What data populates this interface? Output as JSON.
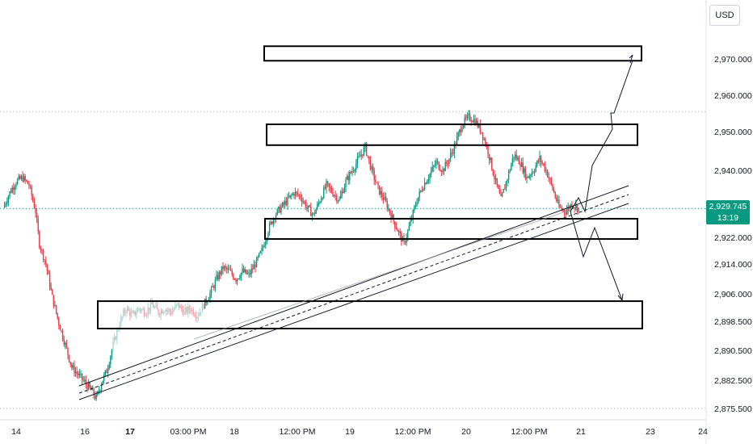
{
  "currency": "USD",
  "current_price": {
    "value": "2,929.745",
    "countdown": "13:19",
    "color": "#089981"
  },
  "colors": {
    "up": "#089981",
    "down": "#f23645",
    "up_light": "#a7d9cf",
    "down_light": "#f5a6b0",
    "box": "#000000",
    "trend_gray": "#9598a1"
  },
  "chart_data": {
    "type": "candlestick",
    "symbol_currency": "USD",
    "y_axis": {
      "ticks": [
        2970,
        2960,
        2950,
        2940,
        2922,
        2914,
        2906,
        2898.5,
        2890.5,
        2882.5,
        2875.5
      ],
      "tick_labels": [
        "2,970.000",
        "2,960.000",
        "2,950.000",
        "2,940.000",
        "2,922.000",
        "2,914.000",
        "2,906.000",
        "2,898.500",
        "2,890.500",
        "2,882.500",
        "2,875.500"
      ],
      "current": 2929.745
    },
    "x_axis": {
      "labels": [
        {
          "text": "14",
          "bold": false
        },
        {
          "text": "16",
          "bold": false
        },
        {
          "text": "17",
          "bold": true
        },
        {
          "text": "03:00 PM",
          "bold": false
        },
        {
          "text": "18",
          "bold": false
        },
        {
          "text": "12:00 PM",
          "bold": false
        },
        {
          "text": "19",
          "bold": false
        },
        {
          "text": "12:00 PM",
          "bold": false
        },
        {
          "text": "20",
          "bold": false
        },
        {
          "text": "12:00 PM",
          "bold": false
        },
        {
          "text": "21",
          "bold": false
        },
        {
          "text": "23",
          "bold": false
        },
        {
          "text": "24",
          "bold": false
        }
      ]
    },
    "price_path": [
      [
        0,
        2930
      ],
      [
        5,
        2934
      ],
      [
        10,
        2937
      ],
      [
        15,
        2938
      ],
      [
        20,
        2936
      ],
      [
        25,
        2929
      ],
      [
        28,
        2920
      ],
      [
        33,
        2914
      ],
      [
        38,
        2905
      ],
      [
        43,
        2898
      ],
      [
        48,
        2892
      ],
      [
        53,
        2886
      ],
      [
        58,
        2884
      ],
      [
        63,
        2882
      ],
      [
        68,
        2880
      ],
      [
        72,
        2878
      ],
      [
        76,
        2882
      ],
      [
        80,
        2885
      ],
      [
        85,
        2892
      ],
      [
        90,
        2898
      ],
      [
        95,
        2902
      ],
      [
        100,
        2900
      ],
      [
        105,
        2902
      ],
      [
        110,
        2901
      ],
      [
        115,
        2903
      ],
      [
        120,
        2901
      ],
      [
        125,
        2902
      ],
      [
        130,
        2901
      ],
      [
        135,
        2903
      ],
      [
        140,
        2901
      ],
      [
        145,
        2902
      ],
      [
        150,
        2900
      ],
      [
        155,
        2903
      ],
      [
        160,
        2906
      ],
      [
        165,
        2910
      ],
      [
        170,
        2913
      ],
      [
        175,
        2912
      ],
      [
        180,
        2910
      ],
      [
        185,
        2912
      ],
      [
        190,
        2911
      ],
      [
        195,
        2914
      ],
      [
        200,
        2918
      ],
      [
        205,
        2924
      ],
      [
        210,
        2928
      ],
      [
        215,
        2930
      ],
      [
        220,
        2932
      ],
      [
        225,
        2934
      ],
      [
        230,
        2933
      ],
      [
        235,
        2930
      ],
      [
        240,
        2928
      ],
      [
        245,
        2932
      ],
      [
        250,
        2936
      ],
      [
        255,
        2934
      ],
      [
        260,
        2932
      ],
      [
        265,
        2937
      ],
      [
        270,
        2940
      ],
      [
        275,
        2943
      ],
      [
        280,
        2946
      ],
      [
        285,
        2940
      ],
      [
        290,
        2935
      ],
      [
        295,
        2932
      ],
      [
        300,
        2928
      ],
      [
        305,
        2924
      ],
      [
        310,
        2920
      ],
      [
        315,
        2926
      ],
      [
        320,
        2932
      ],
      [
        325,
        2936
      ],
      [
        330,
        2939
      ],
      [
        335,
        2942
      ],
      [
        340,
        2940
      ],
      [
        345,
        2943
      ],
      [
        350,
        2947
      ],
      [
        355,
        2952
      ],
      [
        360,
        2954
      ],
      [
        365,
        2953
      ],
      [
        370,
        2950
      ],
      [
        375,
        2945
      ],
      [
        380,
        2938
      ],
      [
        385,
        2932
      ],
      [
        390,
        2938
      ],
      [
        395,
        2944
      ],
      [
        400,
        2942
      ],
      [
        405,
        2938
      ],
      [
        410,
        2940
      ],
      [
        415,
        2943
      ],
      [
        420,
        2940
      ],
      [
        425,
        2935
      ],
      [
        430,
        2930
      ],
      [
        435,
        2929
      ],
      [
        440,
        2931
      ],
      [
        445,
        2929.745
      ]
    ],
    "zones": [
      {
        "name": "upper-target-zone",
        "top": 2973.5,
        "bottom": 2969.5
      },
      {
        "name": "resistance-zone",
        "top": 2952,
        "bottom": 2946.5
      },
      {
        "name": "support-zone",
        "top": 2927,
        "bottom": 2921.5
      },
      {
        "name": "demand-zone",
        "top": 2904,
        "bottom": 2896.5
      }
    ],
    "reference_lines": [
      2955.5,
      2929.745,
      2875.5
    ]
  }
}
